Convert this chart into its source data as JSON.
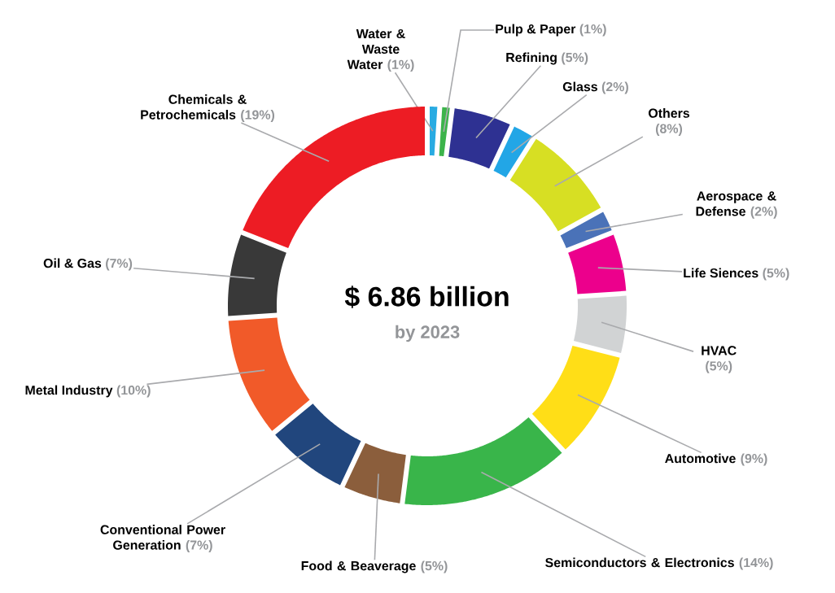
{
  "chart_data": {
    "type": "donut",
    "title": "$ 6.86 billion",
    "subtitle": "by 2023",
    "categories": [
      "Water & Waste Water",
      "Pulp & Paper",
      "Refining",
      "Glass",
      "Others",
      "Aerospace & Defense",
      "Life Siences",
      "HVAC",
      "Automotive",
      "Semiconductors & Electronics",
      "Food & Beaverage",
      "Conventional Power Generation",
      "Metal Industry",
      "Oil & Gas",
      "Chemicals & Petrochemicals"
    ],
    "values": [
      1,
      1,
      5,
      2,
      8,
      2,
      5,
      5,
      9,
      14,
      5,
      7,
      10,
      7,
      19
    ],
    "value_labels": [
      "(1%)",
      "(1%)",
      "(5%)",
      "(2%)",
      "(8%)",
      "(2%)",
      "(5%)",
      "(5%)",
      "(9%)",
      "(14%)",
      "(5%)",
      "(7%)",
      "(10%)",
      "(7%)",
      "(19%)"
    ],
    "colors": [
      "#29abe2",
      "#3cb44b",
      "#2e3192",
      "#22a6e6",
      "#d7df23",
      "#4a72b8",
      "#ec008c",
      "#d1d3d4",
      "#ffde17",
      "#39b54a",
      "#8b5e3c",
      "#21467d",
      "#f15a29",
      "#393939",
      "#ed1c24"
    ]
  }
}
